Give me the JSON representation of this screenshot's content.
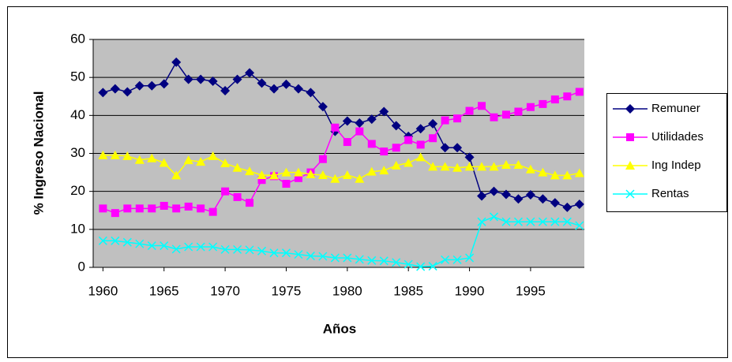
{
  "chart_data": {
    "type": "line",
    "xlabel": "Años",
    "ylabel": "% Ingreso Nacional",
    "x": [
      1960,
      1961,
      1962,
      1963,
      1964,
      1965,
      1966,
      1967,
      1968,
      1969,
      1970,
      1971,
      1972,
      1973,
      1974,
      1975,
      1976,
      1977,
      1978,
      1979,
      1980,
      1981,
      1982,
      1983,
      1984,
      1985,
      1986,
      1987,
      1988,
      1989,
      1990,
      1991,
      1992,
      1993,
      1994,
      1995,
      1996,
      1997,
      1998,
      1999
    ],
    "xlim": [
      1959.2,
      1999.4
    ],
    "xticks": [
      1960,
      1965,
      1970,
      1975,
      1980,
      1985,
      1990,
      1995
    ],
    "ylim": [
      0,
      60
    ],
    "yticks": [
      0,
      10,
      20,
      30,
      40,
      50,
      60
    ],
    "grid": true,
    "legend": "right",
    "series": [
      {
        "name": "Remuner",
        "color": "#000080",
        "marker": "diamond",
        "values": [
          46,
          47,
          46.2,
          47.8,
          47.8,
          48.3,
          54,
          49.5,
          49.5,
          49,
          46.5,
          49.5,
          51.2,
          48.5,
          47,
          48.2,
          47,
          46,
          42.3,
          35.8,
          38.5,
          38,
          39,
          41,
          37.3,
          34.5,
          36.5,
          37.8,
          31.5,
          31.5,
          29,
          18.8,
          20,
          19.2,
          18,
          19.1,
          18,
          17,
          15.8,
          16.6
        ]
      },
      {
        "name": "Utilidades",
        "color": "#ff00ff",
        "marker": "square",
        "values": [
          15.5,
          14.3,
          15.5,
          15.5,
          15.5,
          16.2,
          15.5,
          16,
          15.5,
          14.6,
          20,
          18.5,
          17,
          23,
          24,
          22,
          23.5,
          25,
          28.5,
          36.8,
          33,
          35.8,
          32.5,
          30.5,
          31.5,
          33.5,
          32.3,
          34,
          38.7,
          39.2,
          41.2,
          42.5,
          39.5,
          40.2,
          41,
          42.2,
          43,
          44.2,
          45,
          46.2
        ]
      },
      {
        "name": "Ing Indep",
        "color": "#ffff00",
        "marker": "triangle",
        "values": [
          29.5,
          29.5,
          29.3,
          28.3,
          28.7,
          27.5,
          24.2,
          28.2,
          27.8,
          29.3,
          27.4,
          26.2,
          25.3,
          24.3,
          24.2,
          25,
          25,
          24.5,
          24.3,
          23.3,
          24.3,
          23.3,
          25.2,
          25.5,
          26.8,
          27.5,
          29,
          26.5,
          26.5,
          26.2,
          26.5,
          26.5,
          26.5,
          27,
          27,
          25.8,
          25,
          24.2,
          24.2,
          24.8
        ]
      },
      {
        "name": "Rentas",
        "color": "#00ffff",
        "marker": "x",
        "values": [
          7,
          7,
          6.6,
          6.2,
          5.7,
          5.7,
          4.8,
          5.4,
          5.4,
          5.4,
          4.7,
          4.7,
          4.6,
          4.3,
          3.8,
          3.8,
          3.4,
          3,
          2.9,
          2.5,
          2.5,
          2.1,
          1.8,
          1.7,
          1.3,
          0.8,
          0.2,
          0.3,
          2,
          2,
          2.5,
          12,
          13.3,
          12,
          12,
          12,
          12,
          12,
          12,
          11
        ]
      }
    ]
  }
}
